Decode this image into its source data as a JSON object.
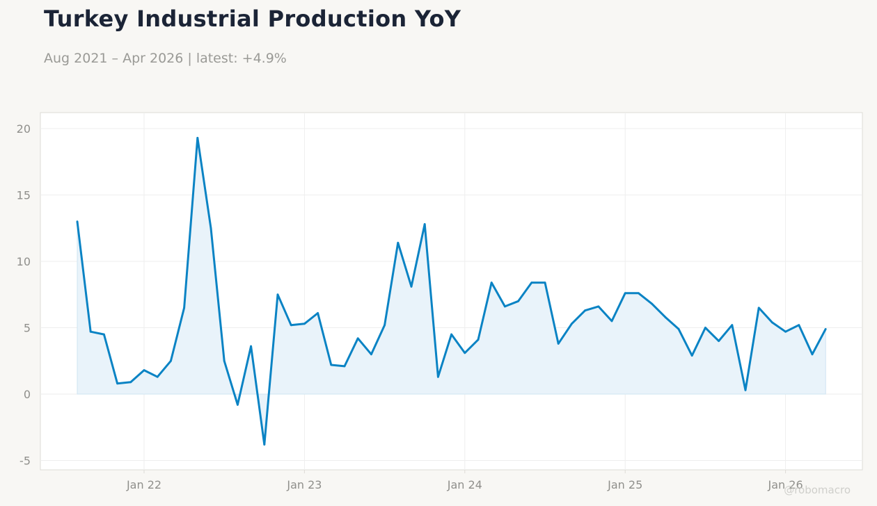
{
  "header": {
    "title": "Turkey Industrial Production YoY",
    "subtitle": "Aug 2021 – Apr 2026 | latest: +4.9%"
  },
  "watermark": "@robomacro",
  "colors": {
    "line": "#0a83c4",
    "fill": "#e9f3fa",
    "grid": "#eeeeee",
    "frame": "#dddbd6",
    "background": "#f8f7f4",
    "plot_background": "#ffffff"
  },
  "chart_data": {
    "type": "area",
    "title": "Turkey Industrial Production YoY",
    "subtitle": "Aug 2021 – Apr 2026 | latest: +4.9%",
    "xlabel": "",
    "ylabel": "",
    "ylim": [
      -5.5,
      20.5
    ],
    "yticks": [
      -5,
      0,
      5,
      10,
      15,
      20
    ],
    "ytick_labels": [
      "-5",
      "0",
      "5",
      "10",
      "15",
      "20"
    ],
    "xticks": [
      "2022-01",
      "2023-01",
      "2024-01",
      "2025-01",
      "2026-01"
    ],
    "xtick_labels": [
      "Jan 22",
      "Jan 23",
      "Jan 24",
      "Jan 25",
      "Jan 26"
    ],
    "grid": true,
    "legend": "none",
    "series": [
      {
        "x": [
          "2021-08",
          "2021-09",
          "2021-10",
          "2021-11",
          "2021-12",
          "2022-01",
          "2022-02",
          "2022-03",
          "2022-04",
          "2022-05",
          "2022-06",
          "2022-07",
          "2022-08",
          "2022-09",
          "2022-10",
          "2022-11",
          "2022-12",
          "2023-01",
          "2023-02",
          "2023-03",
          "2023-04",
          "2023-05",
          "2023-06",
          "2023-07",
          "2023-08",
          "2023-09",
          "2023-10",
          "2023-11",
          "2023-12",
          "2024-01",
          "2024-02",
          "2024-03",
          "2024-04",
          "2024-05",
          "2024-06",
          "2024-07",
          "2024-08",
          "2024-09",
          "2024-10",
          "2024-11",
          "2024-12",
          "2025-01",
          "2025-02",
          "2025-03",
          "2025-04",
          "2025-05",
          "2025-06",
          "2025-07",
          "2025-08",
          "2025-09",
          "2025-10",
          "2025-11",
          "2025-12",
          "2026-01",
          "2026-02",
          "2026-03",
          "2026-04"
        ],
        "values": [
          13.0,
          4.7,
          4.5,
          0.8,
          0.9,
          1.8,
          1.3,
          2.5,
          6.5,
          19.3,
          12.5,
          2.5,
          -0.8,
          3.6,
          -3.8,
          7.5,
          5.2,
          5.3,
          6.1,
          2.2,
          2.1,
          4.2,
          3.0,
          5.2,
          11.4,
          8.1,
          12.8,
          1.3,
          4.5,
          3.1,
          4.1,
          8.4,
          6.6,
          7.0,
          8.4,
          8.4,
          3.8,
          5.3,
          6.3,
          6.6,
          5.5,
          7.6,
          7.6,
          6.8,
          5.8,
          4.9,
          2.9,
          5.0,
          4.0,
          5.2,
          0.3,
          6.5,
          5.4,
          4.7,
          5.2,
          3.0,
          4.9
        ]
      }
    ]
  }
}
